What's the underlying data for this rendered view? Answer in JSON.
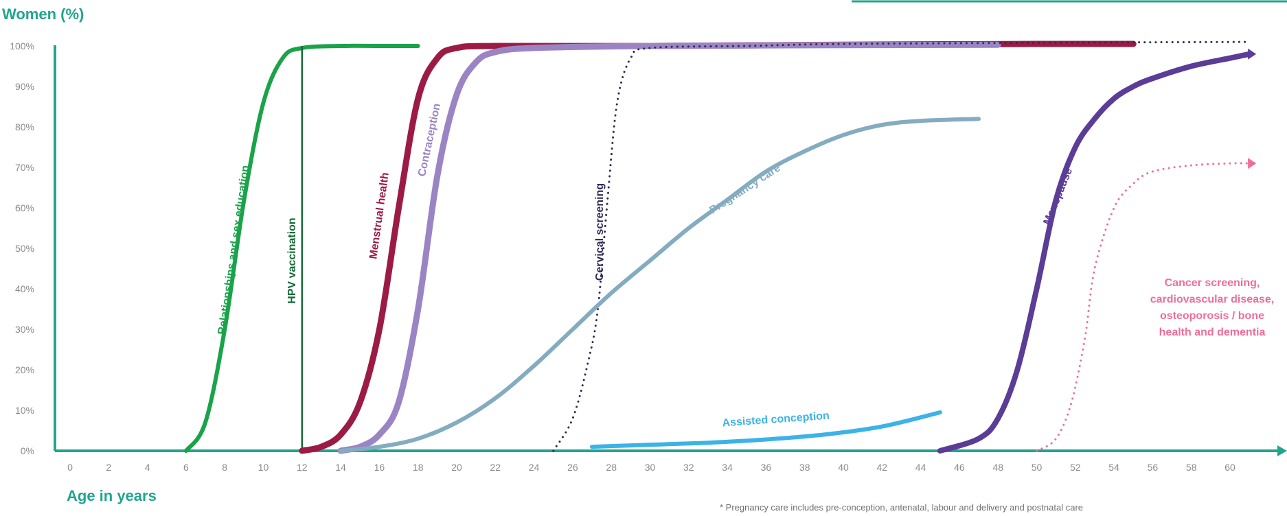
{
  "chart_data": {
    "type": "line",
    "ylabel": "Women (%)",
    "xlabel": "Age in years",
    "xlim": [
      0,
      61
    ],
    "ylim": [
      0,
      100
    ],
    "x_ticks": [
      0,
      2,
      4,
      6,
      8,
      10,
      12,
      14,
      16,
      18,
      20,
      22,
      24,
      26,
      28,
      30,
      32,
      34,
      36,
      38,
      40,
      42,
      44,
      46,
      48,
      50,
      52,
      54,
      56,
      58,
      60
    ],
    "x_tick_labels": [
      "0",
      "2",
      "4",
      "6",
      "8",
      "10",
      "12",
      "14",
      "16",
      "18",
      "20",
      "22",
      "24",
      "26",
      "28",
      "30",
      "32",
      "34",
      "36",
      "38",
      "40",
      "42",
      "44",
      "46",
      "48",
      "50",
      "52",
      "54",
      "56",
      "58",
      "60"
    ],
    "y_ticks": [
      0,
      10,
      20,
      30,
      40,
      50,
      60,
      70,
      80,
      90,
      100
    ],
    "y_tick_labels": [
      "0%",
      "10%",
      "20%",
      "30%",
      "40%",
      "50%",
      "60%",
      "70%",
      "80%",
      "90%",
      "100%"
    ],
    "grid": false,
    "axis_color": "#21a58e",
    "footnote": "* Pregnancy care includes pre-conception, antenatal, labour and delivery and postnatal care",
    "series": [
      {
        "name": "Relationships and sex education",
        "label": "Relationships and sex education",
        "color": "#1aa34a",
        "style": "solid",
        "x": [
          6,
          7,
          8,
          9,
          10,
          11,
          12,
          14,
          16,
          18
        ],
        "y": [
          0,
          7,
          30,
          62,
          86,
          97,
          99.5,
          100,
          100,
          100
        ]
      },
      {
        "name": "HPV vaccination",
        "label": "HPV vaccination",
        "color": "#146b36",
        "style": "vertical",
        "x": [
          12,
          12
        ],
        "y": [
          0,
          100
        ]
      },
      {
        "name": "Menstrual health",
        "label": "Menstrual health",
        "color": "#9c1b45",
        "style": "solid",
        "x": [
          12,
          13,
          14,
          15,
          16,
          17,
          18,
          19,
          20,
          22,
          30,
          40,
          50,
          55
        ],
        "y": [
          0,
          1,
          4,
          12,
          30,
          60,
          87,
          97,
          99.5,
          100,
          100,
          100.3,
          100.5,
          100.5
        ]
      },
      {
        "name": "Contraception",
        "label": "Contraception",
        "color": "#9b84c4",
        "style": "solid",
        "x": [
          14,
          15,
          16,
          17,
          18,
          19,
          20,
          21,
          22,
          24,
          30,
          40,
          48
        ],
        "y": [
          0,
          1,
          4,
          12,
          35,
          68,
          88,
          96,
          98.5,
          99.5,
          100,
          100.2,
          100.3
        ]
      },
      {
        "name": "Cervical screening",
        "label": "Cervical screening",
        "color": "#2e2a55",
        "style": "dotted",
        "x": [
          25,
          26,
          26.8,
          27.3,
          27.8,
          28.3,
          29,
          30,
          35,
          40,
          50,
          61
        ],
        "y": [
          0,
          8,
          22,
          35,
          62,
          86,
          97,
          99.5,
          100,
          100.5,
          100.8,
          101
        ]
      },
      {
        "name": "Pregnancy care*",
        "label": "Pregnancy care*",
        "color": "#84acc0",
        "style": "solid",
        "x": [
          14,
          16,
          18,
          20,
          22,
          24,
          26,
          28,
          30,
          32,
          34,
          36,
          38,
          40,
          42,
          44,
          47
        ],
        "y": [
          0,
          1,
          3,
          7,
          13,
          21,
          30,
          39,
          47,
          55,
          62,
          69,
          74,
          78,
          80.5,
          81.5,
          82
        ]
      },
      {
        "name": "Assisted conception",
        "label": "Assisted conception",
        "color": "#3cb3e6",
        "style": "solid",
        "x": [
          27,
          30,
          33,
          36,
          39,
          42,
          45
        ],
        "y": [
          1,
          1.5,
          2,
          2.8,
          4,
          6,
          9.5
        ]
      },
      {
        "name": "Menopause",
        "label": "Menopause",
        "color": "#5b3c96",
        "style": "solid",
        "x": [
          45,
          47,
          48,
          49,
          50,
          51,
          52,
          53,
          54,
          55,
          56,
          58,
          60,
          61
        ],
        "y": [
          0,
          3,
          8,
          20,
          40,
          62,
          75,
          82,
          87,
          90,
          92,
          95,
          97,
          98
        ]
      },
      {
        "name": "Cancer screening, cardiovascular disease, osteoporosis / bone health and dementia",
        "label": [
          "Cancer screening,",
          "cardiovascular disease,",
          "osteoporosis / bone",
          "health and dementia"
        ],
        "color": "#ef6d98",
        "style": "dotted",
        "x": [
          50,
          51,
          51.8,
          52.5,
          53,
          54,
          55,
          56,
          58,
          60,
          61
        ],
        "y": [
          0,
          3,
          12,
          28,
          45,
          60,
          66,
          69,
          70.5,
          71,
          71
        ]
      }
    ]
  }
}
